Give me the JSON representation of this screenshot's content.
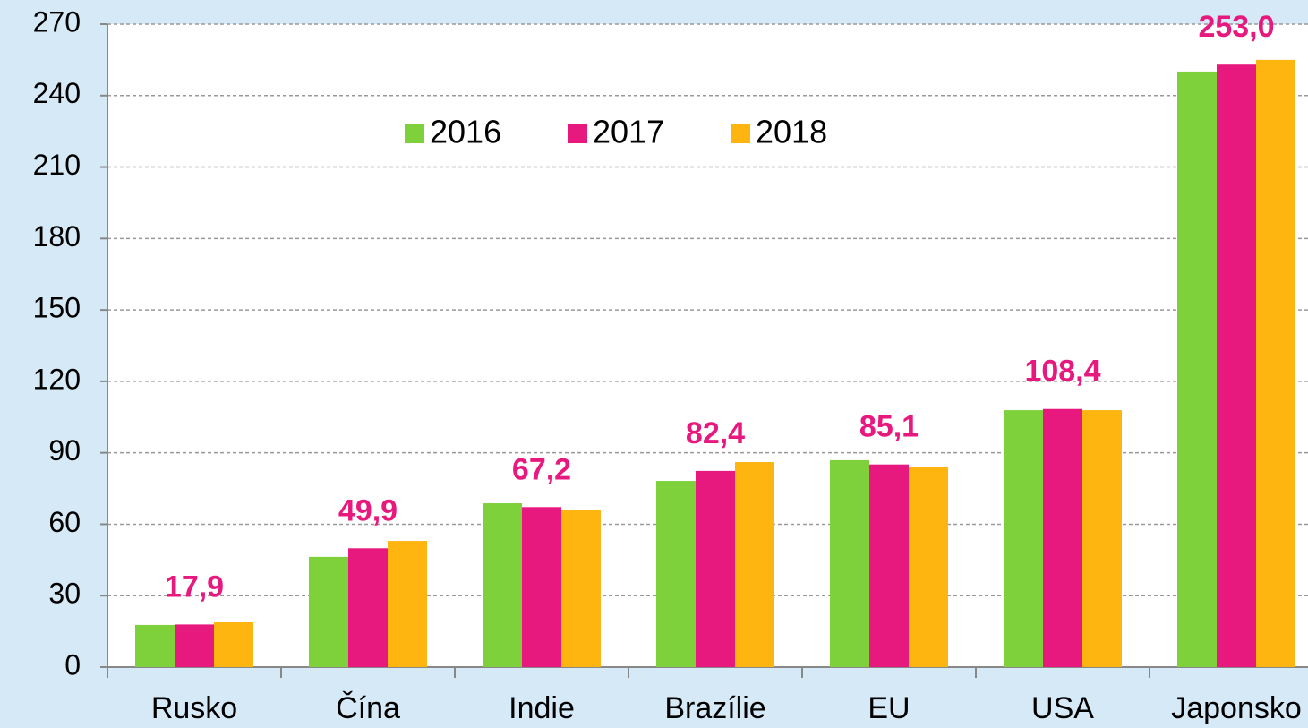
{
  "chart_data": {
    "type": "bar",
    "categories": [
      "Rusko",
      "Čína",
      "Indie",
      "Brazílie",
      "EU",
      "USA",
      "Japonsko"
    ],
    "series": [
      {
        "name": "2016",
        "color": "#7fd13b",
        "values": [
          17.7,
          46.3,
          68.8,
          78.2,
          86.9,
          107.9,
          250.1
        ]
      },
      {
        "name": "2017",
        "color": "#e8197e",
        "values": [
          17.9,
          49.9,
          67.2,
          82.4,
          85.1,
          108.4,
          253.0
        ],
        "value_labels": [
          "17,9",
          "49,9",
          "67,2",
          "82,4",
          "85,1",
          "108,4",
          "253,0"
        ]
      },
      {
        "name": "2018",
        "color": "#ffb50f",
        "values": [
          18.8,
          53.0,
          65.8,
          86.1,
          83.9,
          107.9,
          255.0
        ]
      }
    ],
    "ylim": [
      0,
      270
    ],
    "yticks": [
      0,
      30,
      60,
      90,
      120,
      150,
      180,
      210,
      240,
      270
    ],
    "grid": true
  }
}
